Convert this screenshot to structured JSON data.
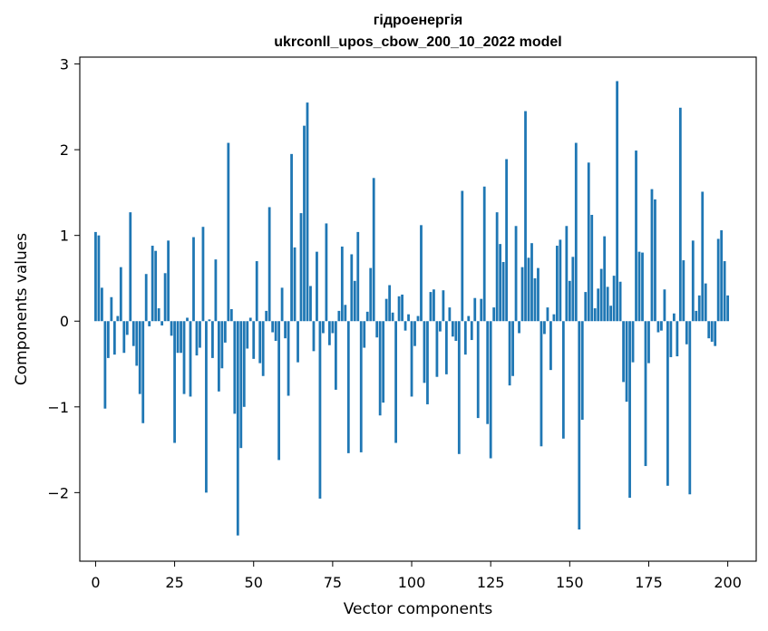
{
  "chart_data": {
    "type": "bar",
    "title": "гідроенергія",
    "subtitle": "ukrconll_upos_cbow_200_10_2022 model",
    "xlabel": "Vector components",
    "ylabel": "Components values",
    "xlim": [
      -5,
      209
    ],
    "ylim": [
      -2.8,
      3.08
    ],
    "xticks": [
      0,
      25,
      50,
      75,
      100,
      125,
      150,
      175,
      200
    ],
    "yticks": [
      -2,
      -1,
      0,
      1,
      2,
      3
    ],
    "ytick_labels": [
      "−2",
      "−1",
      "0",
      "1",
      "2",
      "3"
    ],
    "bar_color": "#1f77b4",
    "values": [
      1.04,
      1.0,
      0.39,
      -1.02,
      -0.43,
      0.28,
      -0.39,
      0.06,
      0.63,
      -0.37,
      -0.16,
      1.27,
      -0.29,
      -0.52,
      -0.85,
      -1.19,
      0.55,
      -0.06,
      0.88,
      0.82,
      0.15,
      -0.05,
      0.56,
      0.94,
      -0.17,
      -1.42,
      -0.37,
      -0.37,
      -0.85,
      0.04,
      -0.88,
      0.98,
      -0.4,
      -0.31,
      1.1,
      -2.0,
      0.02,
      -0.43,
      0.72,
      -0.82,
      -0.55,
      -0.25,
      2.08,
      0.14,
      -1.08,
      -2.5,
      -1.48,
      -1.0,
      -0.32,
      0.04,
      -0.44,
      0.7,
      -0.49,
      -0.64,
      0.12,
      1.33,
      -0.13,
      -0.23,
      -1.62,
      0.39,
      -0.2,
      -0.87,
      1.95,
      0.86,
      -0.48,
      1.26,
      2.28,
      2.55,
      0.41,
      -0.35,
      0.81,
      -2.07,
      -0.14,
      1.14,
      -0.28,
      -0.14,
      -0.8,
      0.12,
      0.87,
      0.19,
      -1.54,
      0.78,
      0.47,
      1.04,
      -1.53,
      -0.31,
      0.11,
      0.62,
      1.67,
      -0.19,
      -1.1,
      -0.95,
      0.26,
      0.42,
      0.1,
      -1.42,
      0.29,
      0.31,
      -0.11,
      0.08,
      -0.88,
      -0.29,
      0.06,
      1.12,
      -0.72,
      -0.97,
      0.34,
      0.37,
      -0.65,
      -0.12,
      0.36,
      -0.62,
      0.16,
      -0.18,
      -0.23,
      -1.55,
      1.52,
      -0.39,
      0.06,
      -0.22,
      0.27,
      -1.13,
      0.26,
      1.57,
      -1.2,
      -1.6,
      0.16,
      1.27,
      0.9,
      0.69,
      1.89,
      -0.75,
      -0.64,
      1.11,
      -0.14,
      0.63,
      2.45,
      0.74,
      0.91,
      0.5,
      0.62,
      -1.46,
      -0.15,
      0.16,
      -0.57,
      0.08,
      0.88,
      0.95,
      -1.37,
      1.11,
      0.47,
      0.75,
      2.08,
      -2.43,
      -1.15,
      0.34,
      1.85,
      1.24,
      0.15,
      0.38,
      0.61,
      0.99,
      0.4,
      0.18,
      0.53,
      2.8,
      0.46,
      -0.71,
      -0.94,
      -2.06,
      -0.48,
      1.99,
      0.81,
      0.8,
      -1.69,
      -0.49,
      1.54,
      1.42,
      -0.13,
      -0.11,
      0.37,
      -1.92,
      -0.42,
      0.09,
      -0.41,
      2.49,
      0.71,
      -0.27,
      -2.02,
      0.94,
      0.12,
      0.3,
      1.51,
      0.44,
      -0.2,
      -0.24,
      -0.29,
      0.96,
      1.06,
      0.7,
      0.3
    ]
  }
}
